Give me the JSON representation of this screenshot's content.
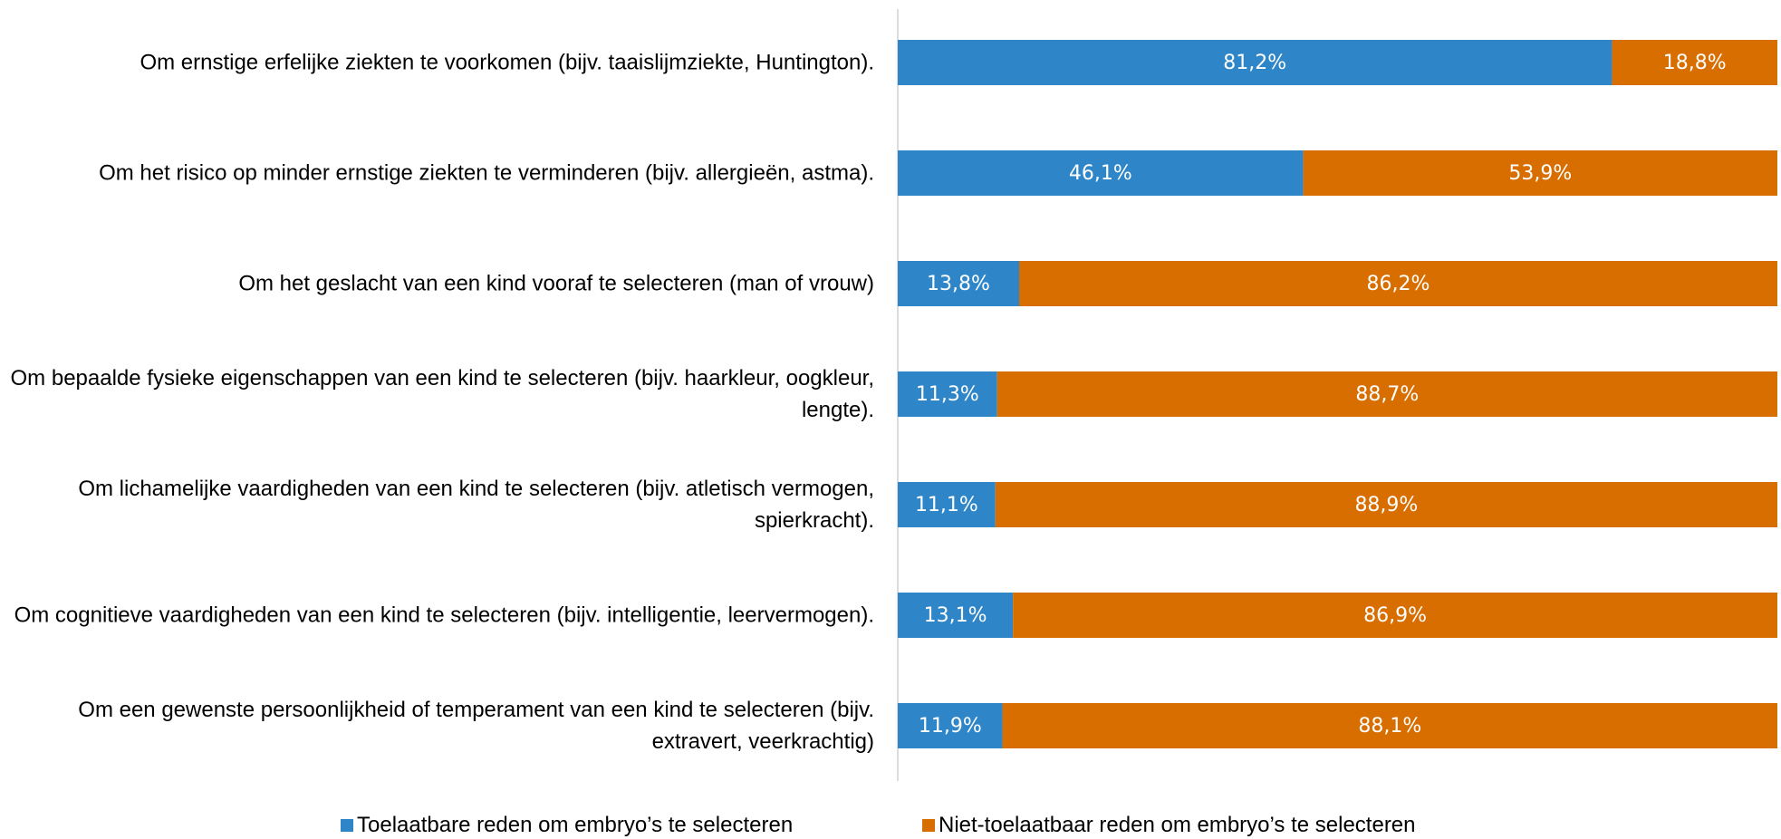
{
  "chart_data": {
    "type": "stacked-bar-horizontal",
    "categories": [
      "Om ernstige erfelijke ziekten te voorkomen (bijv. taaislijmziekte, Huntington).",
      "Om het risico op minder ernstige ziekten te verminderen (bijv. allergieën, astma).",
      "Om het geslacht van een kind vooraf te selecteren (man of vrouw)",
      "Om bepaalde fysieke eigenschappen van een kind te selecteren (bijv. haarkleur, oogkleur, lengte).",
      "Om lichamelijke vaardigheden van een kind te selecteren (bijv. atletisch vermogen, spierkracht).",
      "Om cognitieve vaardigheden van een kind te selecteren (bijv. intelligentie, leervermogen).",
      "Om een gewenste persoonlijkheid of temperament van een kind te selecteren (bijv. extravert, veerkrachtig)"
    ],
    "series": [
      {
        "name": "Toelaatbare reden om embryo’s te selecteren",
        "color": "#2e86c8",
        "values": [
          81.2,
          46.1,
          13.8,
          11.3,
          11.1,
          13.1,
          11.9
        ],
        "value_labels": [
          "81,2%",
          "46,1%",
          "13,8%",
          "11,3%",
          "11,1%",
          "13,1%",
          "11,9%"
        ]
      },
      {
        "name": "Niet-toelaatbaar reden om embryo’s te selecteren",
        "color": "#d86d00",
        "values": [
          18.8,
          53.9,
          86.2,
          88.7,
          88.9,
          86.9,
          88.1
        ],
        "value_labels": [
          "18,8%",
          "53,9%",
          "86,2%",
          "88,7%",
          "88,9%",
          "86,9%",
          "88,1%"
        ]
      }
    ],
    "xlim": [
      0,
      100
    ],
    "legend": "bottom"
  }
}
